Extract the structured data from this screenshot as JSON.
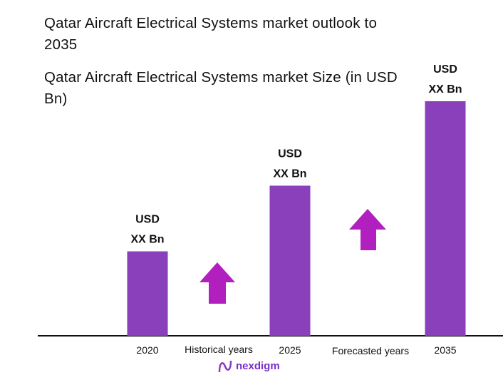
{
  "chart_data": {
    "type": "bar",
    "title": "Qatar Aircraft Electrical Systems market outlook to 2035",
    "subtitle": "Qatar Aircraft Electrical Systems market Size (in USD Bn)",
    "categories": [
      "2020",
      "2025",
      "2035"
    ],
    "values_relative_to_2035_percent": [
      36,
      64,
      100
    ],
    "data_labels": [
      [
        "USD",
        "XX Bn"
      ],
      [
        "USD",
        "XX Bn"
      ],
      [
        "USD",
        "XX Bn"
      ]
    ],
    "period_labels": [
      "Historical years",
      "Forecasted years"
    ],
    "bar_color": "#8a3fbb",
    "arrow_color": "#b21fbf",
    "grid": false,
    "legend": "none"
  },
  "logo": {
    "text": "nexdigm",
    "color": "#7b2fc9"
  }
}
